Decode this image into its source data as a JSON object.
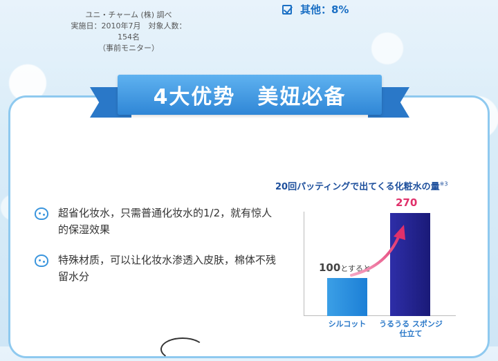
{
  "survey": {
    "source": "ユニ・チャーム (株) 調べ",
    "details": "実施日：2010年7月　対象人数：154名",
    "note": "（事前モニター）"
  },
  "legend_item": {
    "label": "其他：8%",
    "icon": "checkbox-checked-icon",
    "color": "#1a6fc4"
  },
  "banner": {
    "title": "4大优势　美妞必备",
    "color": "#2f86d6"
  },
  "features": [
    {
      "icon": "sponge-icon",
      "text": "超省化妆水，只需普通化妆水的1/2，就有惊人的保湿效果"
    },
    {
      "icon": "sponge-icon",
      "text": "特殊材质，可以让化妆水渗透入皮肤，棉体不残留水分"
    }
  ],
  "chart_data": {
    "type": "bar",
    "title": "20回パッティングで出てくる化粧水の量",
    "title_note": "※3",
    "categories": [
      "シルコット",
      "うるうる スポンジ仕立て"
    ],
    "values": [
      100,
      270
    ],
    "value_labels": [
      "100",
      "270"
    ],
    "value_label_suffix": "とすると",
    "ylim": [
      0,
      290
    ],
    "colors": [
      "#2a8fe0",
      "#24248e"
    ],
    "grid": false
  }
}
